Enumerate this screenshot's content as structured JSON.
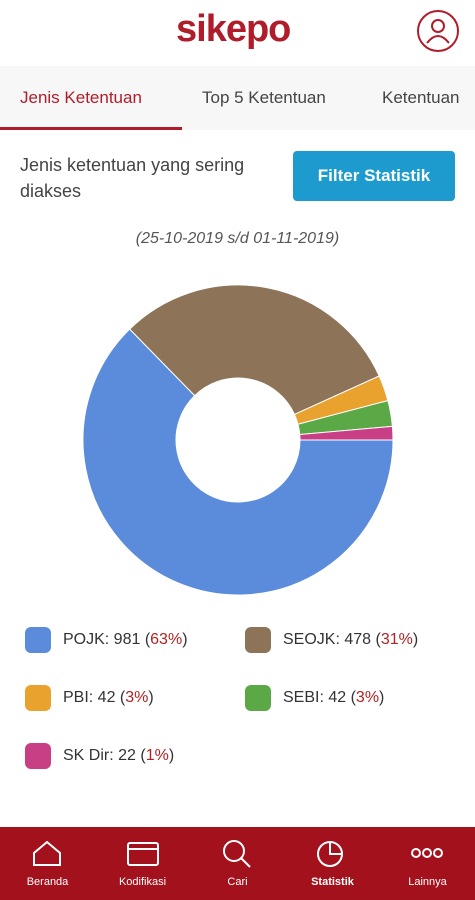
{
  "header": {
    "logo": "sikepo"
  },
  "tabs": [
    "Jenis Ketentuan",
    "Top 5 Ketentuan",
    "Ketentuan"
  ],
  "heading": "Jenis ketentuan yang sering diakses",
  "filter_button": "Filter Statistik",
  "date_range": "(25-10-2019 s/d 01-11-2019)",
  "chart_data": {
    "type": "pie",
    "categories": [
      "POJK",
      "SEOJK",
      "PBI",
      "SEBI",
      "SK Dir"
    ],
    "values": [
      981,
      478,
      42,
      42,
      22
    ],
    "colors": [
      "#5b8cdc",
      "#8d7358",
      "#eaa22e",
      "#5aa846",
      "#c93f86"
    ],
    "legend": [
      "POJK: 981 (63%)",
      "SEOJK: 478 (31%)",
      "PBI: 42 (3%)",
      "SEBI: 42 (3%)",
      "SK Dir: 22 (1%)"
    ]
  },
  "nav": [
    "Beranda",
    "Kodifikasi",
    "Cari",
    "Statistik",
    "Lainnya"
  ]
}
